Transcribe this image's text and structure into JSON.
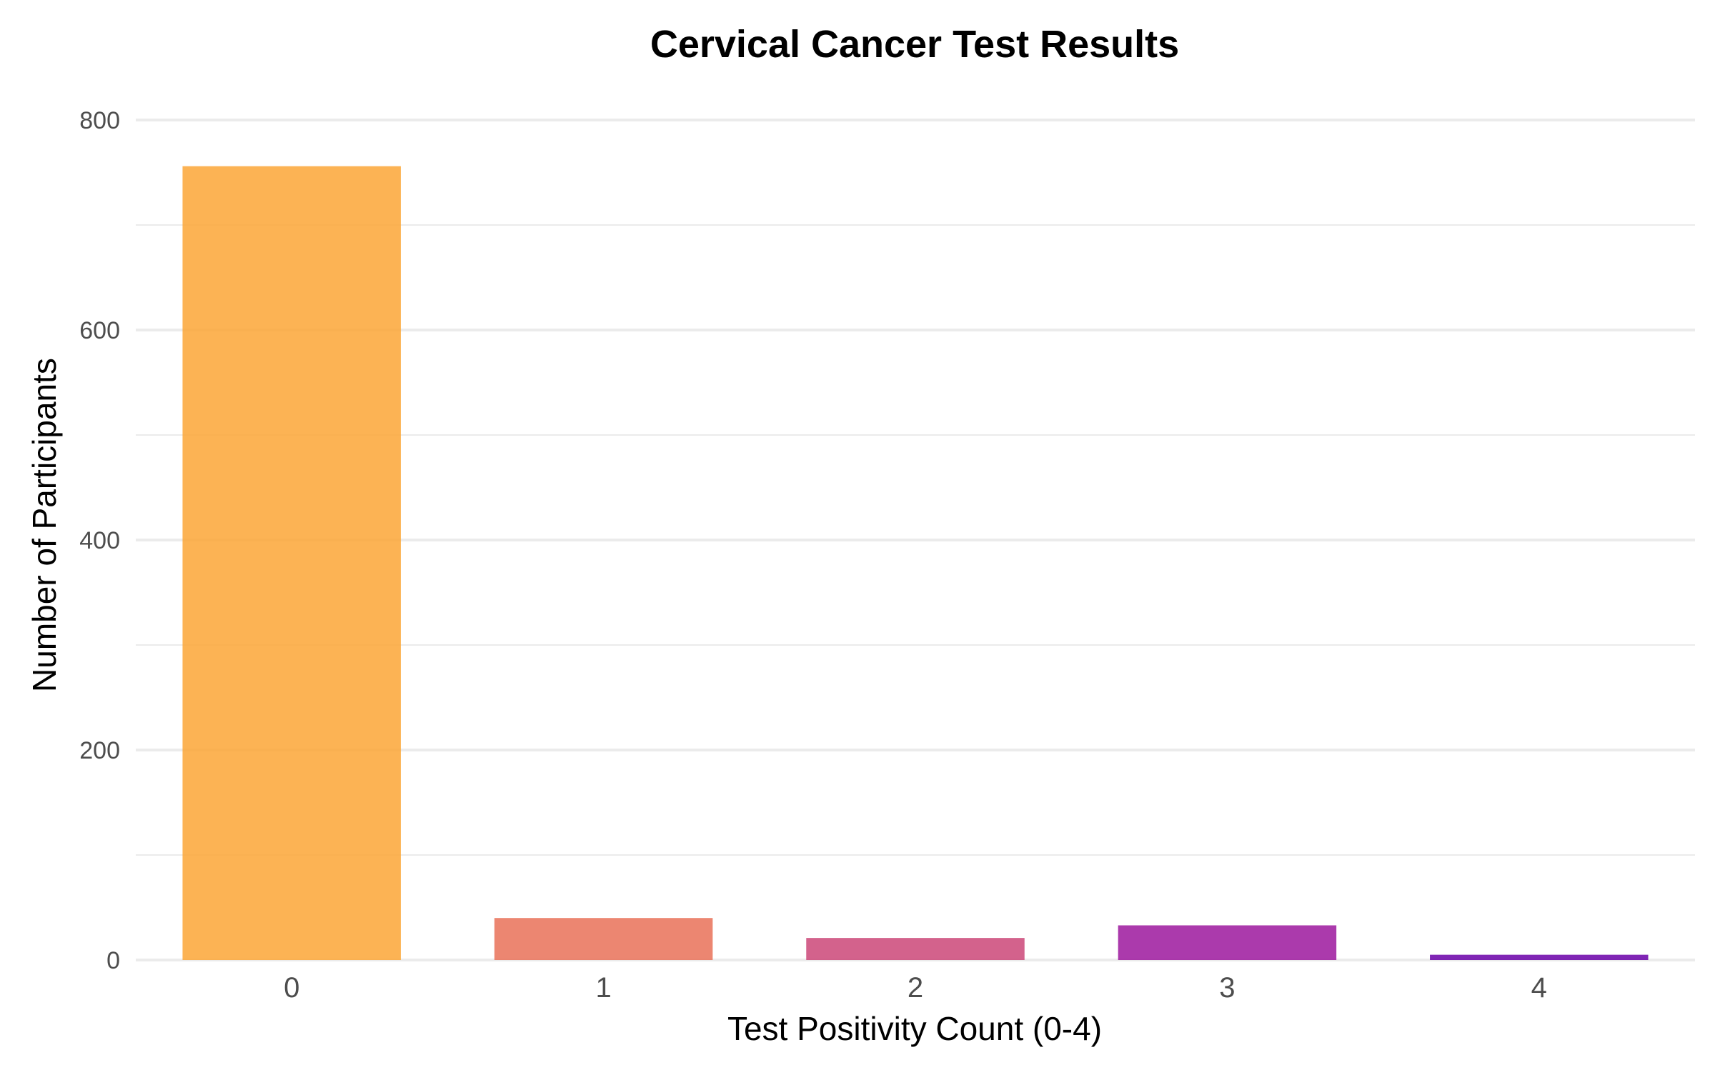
{
  "chart_data": {
    "type": "bar",
    "title": "Cervical Cancer Test Results",
    "xlabel": "Test Positivity Count (0-4)",
    "ylabel": "Number of Participants",
    "categories": [
      "0",
      "1",
      "2",
      "3",
      "4"
    ],
    "values": [
      756,
      40,
      21,
      33,
      5
    ],
    "ylim": [
      0,
      800
    ],
    "yticks": [
      0,
      200,
      400,
      600,
      800
    ],
    "grid": true,
    "legend": "none",
    "colors": [
      "#FCA636",
      "#E97158",
      "#CB4678",
      "#9C179E",
      "#6A00A8"
    ],
    "bar_opacity": 0.85,
    "grid_color": "#EBEBEB"
  }
}
